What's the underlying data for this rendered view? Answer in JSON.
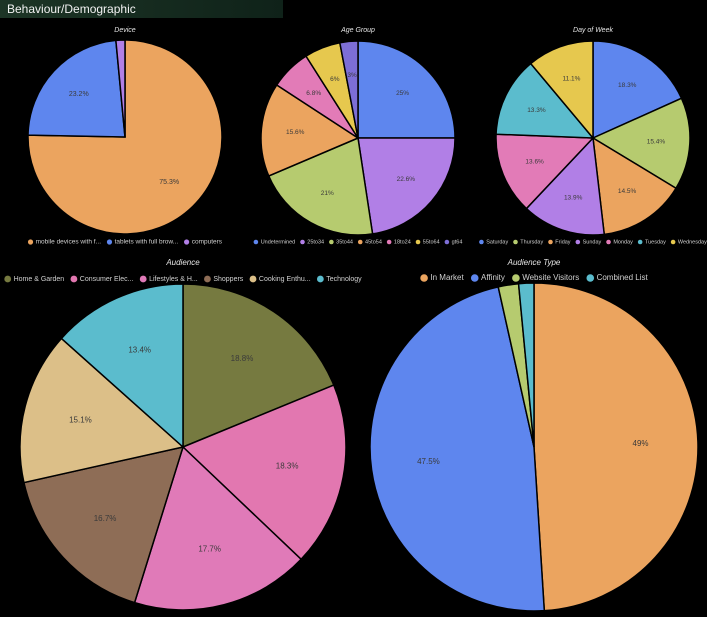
{
  "header": {
    "title": "Behaviour/Demographic"
  },
  "chart_data": [
    {
      "type": "pie",
      "title": "Device",
      "categories": [
        "mobile devices with f...",
        "tablets with full brow...",
        "computers"
      ],
      "values": [
        75.3,
        23.2,
        1.5
      ],
      "value_labels": [
        "75.3%",
        "23.2%",
        null
      ],
      "colors": [
        "#eba45f",
        "#5e86ee",
        "#b17fe6"
      ],
      "legend": "bottom"
    },
    {
      "type": "pie",
      "title": "Age Group",
      "categories": [
        "Undetermined",
        "25to34",
        "35to44",
        "45to54",
        "18to24",
        "55to64",
        "gt64"
      ],
      "values": [
        25,
        22.6,
        21,
        15.6,
        6.8,
        6,
        3
      ],
      "value_labels": [
        "25%",
        "22.6%",
        "21%",
        "15.6%",
        "6.8%",
        "6%",
        "3%"
      ],
      "colors": [
        "#5e86ee",
        "#b17fe6",
        "#b6cb6f",
        "#eba45f",
        "#e27bb7",
        "#e6c84e",
        "#7d6ed6"
      ],
      "legend": "bottom"
    },
    {
      "type": "pie",
      "title": "Day of Week",
      "categories": [
        "Saturday",
        "Thursday",
        "Friday",
        "Sunday",
        "Monday",
        "Tuesday",
        "Wednesday"
      ],
      "values": [
        18.3,
        15.4,
        14.5,
        13.9,
        13.6,
        13.3,
        11.1
      ],
      "value_labels": [
        "18.3%",
        "15.4%",
        "14.5%",
        "13.9%",
        "13.6%",
        "13.3%",
        "11.1%"
      ],
      "colors": [
        "#5e86ee",
        "#b6cb6f",
        "#eba45f",
        "#b17fe6",
        "#e27bb7",
        "#5bbccd",
        "#e6c84e"
      ],
      "legend": "bottom"
    },
    {
      "type": "pie",
      "title": "Audience",
      "categories": [
        "Home & Garden",
        "Consumer Elec...",
        "Lifestyles & H...",
        "Shoppers",
        "Cooking Enthu...",
        "Technology"
      ],
      "values": [
        18.8,
        18.3,
        17.7,
        16.7,
        15.1,
        13.4
      ],
      "value_labels": [
        "18.8%",
        "18.3%",
        "17.7%",
        "16.7%",
        "15.1%",
        "13.4%"
      ],
      "colors": [
        "#767a40",
        "#e277b0",
        "#e07ab8",
        "#8e6d56",
        "#dcbf88",
        "#5bbccd"
      ],
      "legend": "top"
    },
    {
      "type": "pie",
      "title": "Audience Type",
      "categories": [
        "In Market",
        "Affinity",
        "Website Visitors",
        "Combined List"
      ],
      "values": [
        49,
        47.5,
        2,
        1.5
      ],
      "value_labels": [
        "49%",
        "47.5%",
        null,
        null
      ],
      "colors": [
        "#eba45f",
        "#5e86ee",
        "#b6cb6f",
        "#5bbccd"
      ],
      "legend": "top"
    }
  ]
}
